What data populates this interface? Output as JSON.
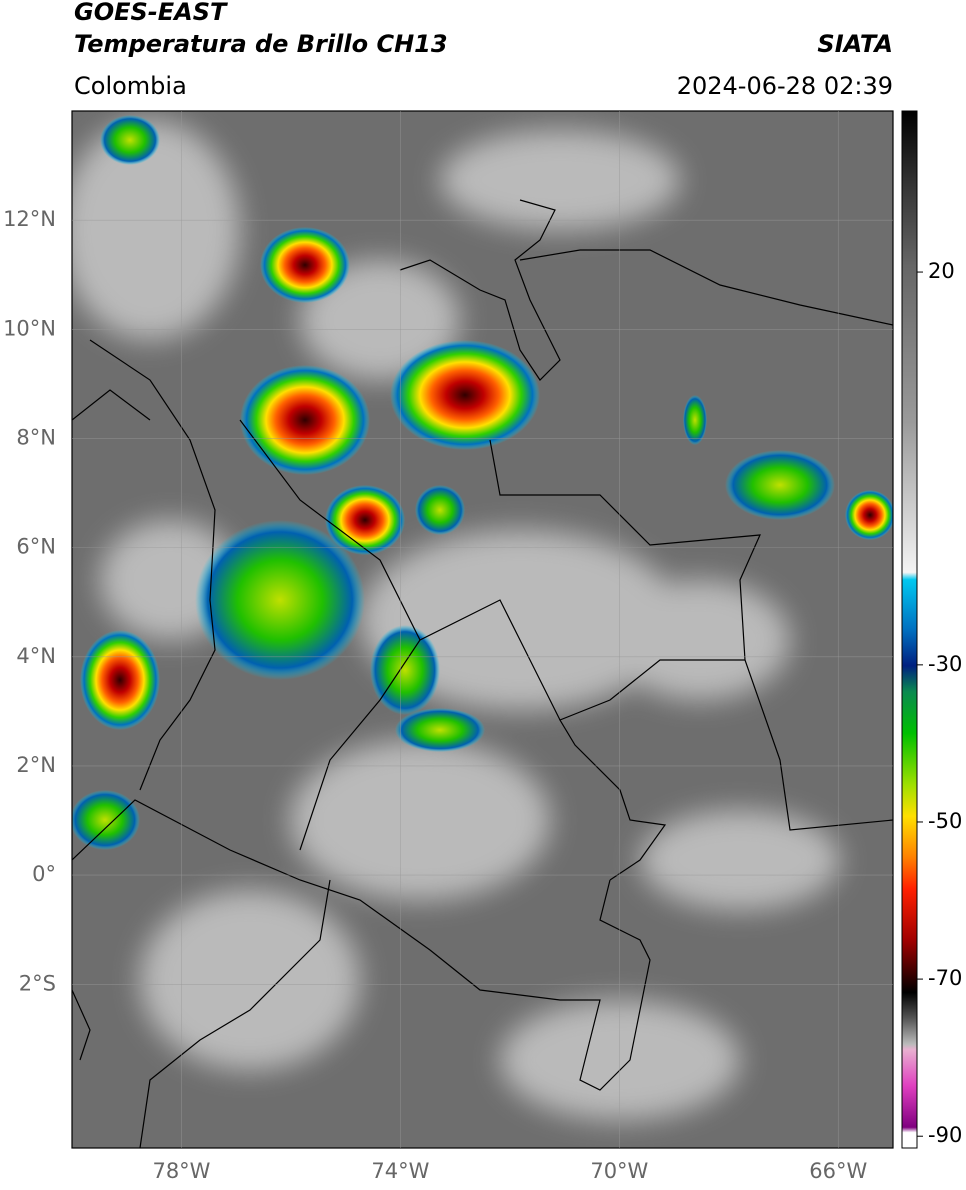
{
  "header": {
    "title": "GOES-EAST",
    "subtitle": "Temperatura de Brillo CH13",
    "source": "SIATA",
    "region": "Colombia",
    "datetime": "2024-06-28 02:39"
  },
  "map": {
    "xlim": [
      -80,
      -65
    ],
    "ylim": [
      -5,
      14
    ],
    "xticks": [
      {
        "value": -78,
        "label": "78°W"
      },
      {
        "value": -74,
        "label": "74°W"
      },
      {
        "value": -70,
        "label": "70°W"
      },
      {
        "value": -66,
        "label": "66°W"
      }
    ],
    "yticks": [
      {
        "value": 12,
        "label": "12°N"
      },
      {
        "value": 10,
        "label": "10°N"
      },
      {
        "value": 8,
        "label": "8°N"
      },
      {
        "value": 6,
        "label": "6°N"
      },
      {
        "value": 4,
        "label": "4°N"
      },
      {
        "value": 2,
        "label": "2°N"
      },
      {
        "value": 0,
        "label": "0°"
      },
      {
        "value": -2,
        "label": "2°S"
      }
    ],
    "grid": true
  },
  "colorbar": {
    "lim": [
      -91.5,
      40.5
    ],
    "ticks": [
      20,
      -30,
      -50,
      -70,
      -90
    ]
  }
}
